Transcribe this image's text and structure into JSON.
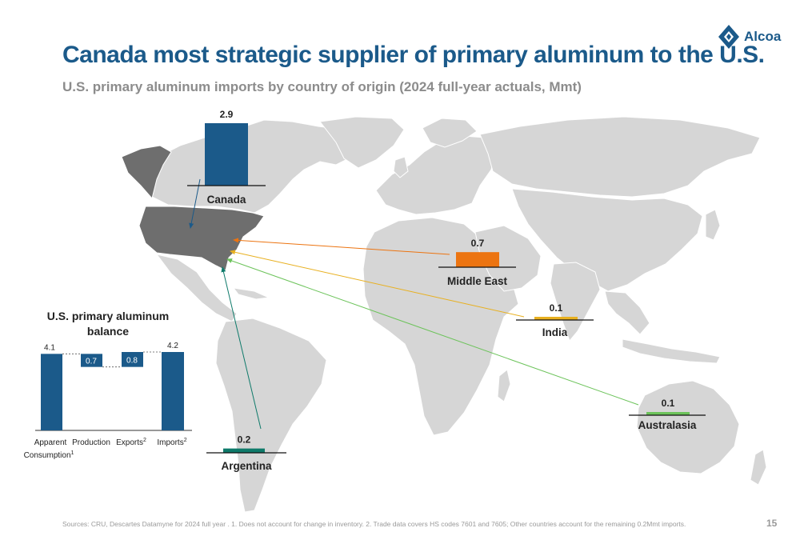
{
  "title": "Canada most strategic supplier of primary aluminum to the U.S.",
  "subtitle": "U.S. primary aluminum imports by country of origin (2024 full-year actuals, Mmt)",
  "logo": {
    "text": "Alcoa",
    "icon": "alcoa-diamond-logo-icon"
  },
  "page_number": "15",
  "footnote": "Sources: CRU, Descartes Datamyne for 2024 full year . 1. Does not account for change in inventory. 2. Trade data covers HS codes 7601 and 7605; Other countries account for the remaining 0.2Mmt imports.",
  "colors": {
    "title": "#1b5a8a",
    "canada": "#1b5a8a",
    "middle_east": "#ec7411",
    "india": "#e8b020",
    "australasia": "#6cc35a",
    "argentina": "#0e7a6a",
    "map_land": "#d6d6d6",
    "usa": "#6e6e6e"
  },
  "chart_data": [
    {
      "type": "bar",
      "title": "U.S. primary aluminum imports by country of origin (2024 full-year actuals, Mmt)",
      "unit": "Mmt",
      "series": [
        {
          "name": "Canada",
          "value": 2.9,
          "label": "2.9",
          "color": "#1b5a8a"
        },
        {
          "name": "Middle East",
          "value": 0.7,
          "label": "0.7",
          "color": "#ec7411"
        },
        {
          "name": "India",
          "value": 0.1,
          "label": "0.1",
          "color": "#e8b020"
        },
        {
          "name": "Australasia",
          "value": 0.1,
          "label": "0.1",
          "color": "#6cc35a"
        },
        {
          "name": "Argentina",
          "value": 0.2,
          "label": "0.2",
          "color": "#0e7a6a"
        }
      ],
      "flow_destination": "U.S."
    },
    {
      "type": "bar",
      "subtype": "waterfall",
      "title": "U.S. primary aluminum balance",
      "categories": [
        "Apparent",
        "Production",
        "Exports",
        "Imports"
      ],
      "category_second_line": [
        "Consumption",
        "",
        "",
        ""
      ],
      "category_superscripts": [
        "1",
        "",
        "2",
        "2"
      ],
      "values": [
        4.1,
        0.7,
        0.8,
        4.2
      ],
      "labels": [
        "4.1",
        "0.7",
        "0.8",
        "4.2"
      ],
      "ylim": [
        0,
        4.2
      ]
    }
  ]
}
